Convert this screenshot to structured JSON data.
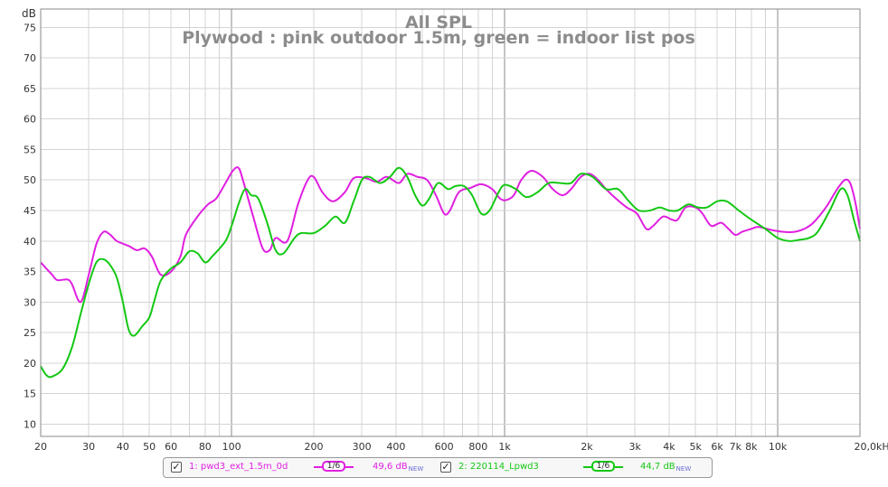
{
  "colors": {
    "pink": "#e01fe0",
    "green": "#14c814",
    "grid_minor": "#d4d4d4",
    "grid_major": "#8a8a8a",
    "text": "#333333",
    "title": "#808080"
  },
  "chart_data": {
    "type": "line",
    "title": "All SPL",
    "subtitle": "Plywood : pink outdoor 1.5m, green = indoor list pos",
    "ylabel": "dB",
    "xlabel": "",
    "x_scale": "log",
    "xlim": [
      20,
      20000
    ],
    "ylim": [
      8,
      78
    ],
    "grid": true,
    "y_ticks": [
      10,
      15,
      20,
      25,
      30,
      35,
      40,
      45,
      50,
      55,
      60,
      65,
      70,
      75
    ],
    "x_ticks": [
      {
        "v": 20,
        "label": "20"
      },
      {
        "v": 30,
        "label": "30"
      },
      {
        "v": 40,
        "label": "40"
      },
      {
        "v": 50,
        "label": "50"
      },
      {
        "v": 60,
        "label": "60"
      },
      {
        "v": 80,
        "label": "80"
      },
      {
        "v": 100,
        "label": "100"
      },
      {
        "v": 200,
        "label": "200"
      },
      {
        "v": 300,
        "label": "300"
      },
      {
        "v": 400,
        "label": "400"
      },
      {
        "v": 600,
        "label": "600"
      },
      {
        "v": 800,
        "label": "800"
      },
      {
        "v": 1000,
        "label": "1k"
      },
      {
        "v": 2000,
        "label": "2k"
      },
      {
        "v": 3000,
        "label": "3k"
      },
      {
        "v": 4000,
        "label": "4k"
      },
      {
        "v": 5000,
        "label": "5k"
      },
      {
        "v": 6000,
        "label": "6k"
      },
      {
        "v": 7000,
        "label": "7k"
      },
      {
        "v": 8000,
        "label": "8k"
      },
      {
        "v": 10000,
        "label": "10k"
      },
      {
        "v": 20000,
        "label": "20,0kHz"
      }
    ],
    "series": [
      {
        "name": "1: pwd3_ext_1.5m_0d",
        "smoothing": "1/6",
        "level": "49,6 dB",
        "level_tag": "NEW",
        "color": "#e01fe0",
        "points": [
          [
            20,
            36.5
          ],
          [
            22,
            34.5
          ],
          [
            23,
            33.6
          ],
          [
            25,
            33.7
          ],
          [
            26,
            33.0
          ],
          [
            28,
            30.0
          ],
          [
            30,
            34.5
          ],
          [
            32,
            39.5
          ],
          [
            34,
            41.5
          ],
          [
            36,
            41.0
          ],
          [
            38,
            40.0
          ],
          [
            42,
            39.2
          ],
          [
            45,
            38.5
          ],
          [
            48,
            38.8
          ],
          [
            51,
            37.5
          ],
          [
            55,
            34.5
          ],
          [
            60,
            35.0
          ],
          [
            65,
            37.5
          ],
          [
            68,
            41.0
          ],
          [
            75,
            44.0
          ],
          [
            82,
            46.0
          ],
          [
            88,
            47.0
          ],
          [
            95,
            49.5
          ],
          [
            101,
            51.5
          ],
          [
            106,
            52.0
          ],
          [
            110,
            50.0
          ],
          [
            120,
            44.0
          ],
          [
            130,
            38.8
          ],
          [
            138,
            38.5
          ],
          [
            145,
            40.5
          ],
          [
            160,
            40.0
          ],
          [
            175,
            46.0
          ],
          [
            190,
            50.0
          ],
          [
            200,
            50.5
          ],
          [
            215,
            48.0
          ],
          [
            235,
            46.5
          ],
          [
            260,
            48.0
          ],
          [
            280,
            50.3
          ],
          [
            310,
            50.3
          ],
          [
            340,
            49.7
          ],
          [
            370,
            50.5
          ],
          [
            410,
            49.5
          ],
          [
            440,
            51.0
          ],
          [
            480,
            50.5
          ],
          [
            520,
            50.0
          ],
          [
            560,
            47.5
          ],
          [
            600,
            44.5
          ],
          [
            630,
            45.0
          ],
          [
            680,
            48.0
          ],
          [
            750,
            48.7
          ],
          [
            820,
            49.3
          ],
          [
            900,
            48.5
          ],
          [
            960,
            47.0
          ],
          [
            1010,
            46.7
          ],
          [
            1080,
            47.5
          ],
          [
            1150,
            50.0
          ],
          [
            1250,
            51.5
          ],
          [
            1380,
            50.5
          ],
          [
            1500,
            48.5
          ],
          [
            1630,
            47.5
          ],
          [
            1750,
            48.5
          ],
          [
            1900,
            50.5
          ],
          [
            2050,
            51.0
          ],
          [
            2200,
            50.0
          ],
          [
            2350,
            48.5
          ],
          [
            2550,
            47.0
          ],
          [
            2800,
            45.5
          ],
          [
            3050,
            44.5
          ],
          [
            3300,
            42.0
          ],
          [
            3500,
            42.5
          ],
          [
            3800,
            44.0
          ],
          [
            4100,
            43.5
          ],
          [
            4300,
            43.5
          ],
          [
            4600,
            45.5
          ],
          [
            5000,
            45.5
          ],
          [
            5300,
            44.5
          ],
          [
            5700,
            42.5
          ],
          [
            6200,
            43.0
          ],
          [
            6600,
            42.0
          ],
          [
            7000,
            41.0
          ],
          [
            7400,
            41.5
          ],
          [
            8000,
            42.0
          ],
          [
            8500,
            42.3
          ],
          [
            9500,
            41.8
          ],
          [
            10500,
            41.5
          ],
          [
            11500,
            41.5
          ],
          [
            12500,
            42.0
          ],
          [
            13500,
            43.0
          ],
          [
            15000,
            45.5
          ],
          [
            16500,
            48.5
          ],
          [
            17600,
            50.0
          ],
          [
            18400,
            49.5
          ],
          [
            19200,
            46.5
          ],
          [
            20000,
            42.0
          ]
        ]
      },
      {
        "name": "2: 220114_Lpwd3",
        "smoothing": "1/6",
        "level": "44,7 dB",
        "level_tag": "NEW",
        "color": "#14c814",
        "points": [
          [
            20,
            19.5
          ],
          [
            21,
            18.0
          ],
          [
            22,
            17.8
          ],
          [
            24,
            19.0
          ],
          [
            26,
            22.5
          ],
          [
            28,
            28.0
          ],
          [
            30,
            33.0
          ],
          [
            32,
            36.5
          ],
          [
            34,
            37.0
          ],
          [
            36,
            36.0
          ],
          [
            38,
            34.0
          ],
          [
            40,
            30.0
          ],
          [
            42,
            25.5
          ],
          [
            44,
            24.5
          ],
          [
            47,
            26.0
          ],
          [
            50,
            27.5
          ],
          [
            52,
            30.0
          ],
          [
            55,
            33.5
          ],
          [
            60,
            35.5
          ],
          [
            65,
            36.5
          ],
          [
            70,
            38.3
          ],
          [
            75,
            38.0
          ],
          [
            80,
            36.5
          ],
          [
            85,
            37.5
          ],
          [
            95,
            40.0
          ],
          [
            100,
            42.5
          ],
          [
            106,
            46.0
          ],
          [
            112,
            48.5
          ],
          [
            118,
            47.5
          ],
          [
            125,
            47.0
          ],
          [
            135,
            43.0
          ],
          [
            145,
            38.5
          ],
          [
            155,
            38.0
          ],
          [
            170,
            40.5
          ],
          [
            180,
            41.3
          ],
          [
            200,
            41.3
          ],
          [
            220,
            42.5
          ],
          [
            240,
            44.0
          ],
          [
            260,
            43.0
          ],
          [
            280,
            46.5
          ],
          [
            300,
            50.0
          ],
          [
            320,
            50.5
          ],
          [
            350,
            49.5
          ],
          [
            380,
            50.5
          ],
          [
            410,
            52.0
          ],
          [
            440,
            50.5
          ],
          [
            470,
            47.5
          ],
          [
            500,
            45.8
          ],
          [
            530,
            47.0
          ],
          [
            570,
            49.5
          ],
          [
            620,
            48.5
          ],
          [
            660,
            49.0
          ],
          [
            710,
            49.0
          ],
          [
            760,
            47.5
          ],
          [
            820,
            44.5
          ],
          [
            880,
            45.0
          ],
          [
            950,
            48.0
          ],
          [
            1000,
            49.2
          ],
          [
            1100,
            48.5
          ],
          [
            1200,
            47.2
          ],
          [
            1320,
            48.0
          ],
          [
            1450,
            49.5
          ],
          [
            1600,
            49.5
          ],
          [
            1750,
            49.5
          ],
          [
            1900,
            51.0
          ],
          [
            2100,
            50.5
          ],
          [
            2350,
            48.5
          ],
          [
            2600,
            48.5
          ],
          [
            2850,
            46.5
          ],
          [
            3100,
            45.0
          ],
          [
            3400,
            45.0
          ],
          [
            3700,
            45.5
          ],
          [
            4000,
            45.0
          ],
          [
            4300,
            45.0
          ],
          [
            4700,
            46.0
          ],
          [
            5100,
            45.5
          ],
          [
            5500,
            45.5
          ],
          [
            6000,
            46.5
          ],
          [
            6500,
            46.5
          ],
          [
            7200,
            45.0
          ],
          [
            8000,
            43.5
          ],
          [
            9000,
            42.0
          ],
          [
            10000,
            40.5
          ],
          [
            11000,
            40.0
          ],
          [
            12000,
            40.2
          ],
          [
            13000,
            40.5
          ],
          [
            14000,
            41.5
          ],
          [
            15500,
            45.0
          ],
          [
            17000,
            48.5
          ],
          [
            18000,
            47.5
          ],
          [
            19000,
            43.5
          ],
          [
            20000,
            40.0
          ]
        ]
      }
    ]
  }
}
